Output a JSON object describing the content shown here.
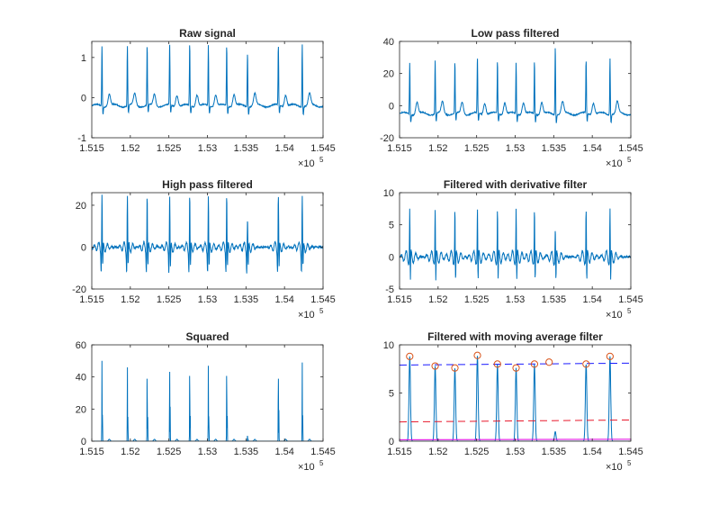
{
  "figure": {
    "background": "#ffffff",
    "line_color": "#0072BD"
  },
  "chart_data": [
    {
      "type": "line",
      "title": "Raw signal",
      "xlim": [
        151500,
        154500
      ],
      "ylim": [
        -1,
        1.4
      ],
      "x_ticks": [
        "1.515",
        "1.52",
        "1.525",
        "1.53",
        "1.535",
        "1.54",
        "1.545"
      ],
      "x_exponent": "×10",
      "x_exponent_power": "5",
      "y_ticks": [
        {
          "v": -1,
          "label": "-1"
        },
        {
          "v": 0,
          "label": "0"
        },
        {
          "v": 1,
          "label": "1"
        }
      ],
      "series": [
        {
          "color": "#0072BD",
          "peak_x": [
            151632,
            151962,
            152218,
            152510,
            152770,
            153012,
            153250,
            153520,
            153920,
            154230
          ],
          "peak_y": [
            1.3,
            1.3,
            1.3,
            1.35,
            1.35,
            1.3,
            1.3,
            1.15,
            1.3,
            1.35
          ],
          "baseline": -0.2
        }
      ]
    },
    {
      "type": "line",
      "title": "Low pass filtered",
      "xlim": [
        151500,
        154500
      ],
      "ylim": [
        -20,
        40
      ],
      "x_ticks": [
        "1.515",
        "1.52",
        "1.525",
        "1.53",
        "1.535",
        "1.54",
        "1.545"
      ],
      "x_exponent": "×10",
      "x_exponent_power": "5",
      "y_ticks": [
        {
          "v": -20,
          "label": "-20"
        },
        {
          "v": 0,
          "label": "0"
        },
        {
          "v": 20,
          "label": "20"
        },
        {
          "v": 40,
          "label": "40"
        }
      ],
      "series": [
        {
          "color": "#0072BD",
          "peak_x": [
            151632,
            151962,
            152218,
            152510,
            152770,
            153012,
            153250,
            153520,
            153920,
            154230
          ],
          "peak_y": [
            27,
            28,
            27,
            30,
            28,
            27,
            28,
            38,
            28,
            30
          ],
          "baseline": -5
        }
      ]
    },
    {
      "type": "line",
      "title": "High pass filtered",
      "xlim": [
        151500,
        154500
      ],
      "ylim": [
        -20,
        26
      ],
      "x_ticks": [
        "1.515",
        "1.52",
        "1.525",
        "1.53",
        "1.535",
        "1.54",
        "1.545"
      ],
      "x_exponent": "×10",
      "x_exponent_power": "5",
      "y_ticks": [
        {
          "v": -20,
          "label": "-20"
        },
        {
          "v": 0,
          "label": "0"
        },
        {
          "v": 20,
          "label": "20"
        }
      ],
      "series": [
        {
          "color": "#0072BD",
          "peak_x": [
            151632,
            151962,
            152218,
            152510,
            152770,
            153012,
            153250,
            153520,
            153920,
            154230
          ],
          "peak_y": [
            25,
            25,
            25,
            25,
            25,
            25,
            25,
            14,
            25,
            25
          ],
          "baseline": 0
        }
      ]
    },
    {
      "type": "line",
      "title": "Filtered with derivative filter",
      "xlim": [
        151500,
        154500
      ],
      "ylim": [
        -5,
        10
      ],
      "x_ticks": [
        "1.515",
        "1.52",
        "1.525",
        "1.53",
        "1.535",
        "1.54",
        "1.545"
      ],
      "x_exponent": "×10",
      "x_exponent_power": "5",
      "y_ticks": [
        {
          "v": -5,
          "label": "-5"
        },
        {
          "v": 0,
          "label": "0"
        },
        {
          "v": 5,
          "label": "5"
        },
        {
          "v": 10,
          "label": "10"
        }
      ],
      "series": [
        {
          "color": "#0072BD",
          "peak_x": [
            151632,
            151962,
            152218,
            152510,
            152770,
            153012,
            153250,
            153520,
            153920,
            154230
          ],
          "peak_y": [
            7.5,
            7.5,
            7.5,
            7.7,
            7.5,
            7.5,
            7.5,
            4.5,
            7.5,
            7.6
          ],
          "baseline": 0
        }
      ]
    },
    {
      "type": "line",
      "title": "Squared",
      "xlim": [
        151500,
        154500
      ],
      "ylim": [
        0,
        60
      ],
      "x_ticks": [
        "1.515",
        "1.52",
        "1.525",
        "1.53",
        "1.535",
        "1.54",
        "1.545"
      ],
      "x_exponent": "×10",
      "x_exponent_power": "5",
      "y_ticks": [
        {
          "v": 0,
          "label": "0"
        },
        {
          "v": 20,
          "label": "20"
        },
        {
          "v": 40,
          "label": "40"
        },
        {
          "v": 60,
          "label": "60"
        }
      ],
      "series": [
        {
          "color": "#0072BD",
          "peak_x": [
            151632,
            151962,
            152218,
            152510,
            152770,
            153012,
            153250,
            153520,
            153920,
            154230
          ],
          "peak_y": [
            50,
            46,
            46,
            51,
            48,
            47,
            48,
            4,
            46,
            49
          ],
          "baseline": 0
        }
      ]
    },
    {
      "type": "line",
      "title": "Filtered with moving average filter",
      "xlim": [
        151500,
        154500
      ],
      "ylim": [
        0,
        10
      ],
      "x_ticks": [
        "1.515",
        "1.52",
        "1.525",
        "1.53",
        "1.535",
        "1.54",
        "1.545"
      ],
      "x_exponent": "×10",
      "x_exponent_power": "5",
      "y_ticks": [
        {
          "v": 0,
          "label": "0"
        },
        {
          "v": 5,
          "label": "5"
        },
        {
          "v": 10,
          "label": "10"
        }
      ],
      "series": [
        {
          "color": "#0072BD",
          "peak_x": [
            151632,
            151962,
            152218,
            152510,
            152770,
            153012,
            153250,
            153520,
            153920,
            154230
          ],
          "peak_y": [
            8.8,
            7.8,
            7.6,
            8.9,
            8.0,
            7.6,
            8.0,
            1.0,
            8.0,
            8.8
          ],
          "baseline": 0
        },
        {
          "color": "#1a1aff",
          "style": "dashed",
          "x": [
            151500,
            154500
          ],
          "y": [
            7.9,
            8.1
          ]
        },
        {
          "color": "#e8182b",
          "style": "dashed",
          "x": [
            151500,
            154500
          ],
          "y": [
            2.0,
            2.2
          ]
        },
        {
          "color": "#e000e0",
          "x": [
            151500,
            154500
          ],
          "y": [
            0.15,
            0.2
          ]
        }
      ],
      "markers": {
        "color": "#D95319",
        "x": [
          151632,
          151962,
          152218,
          152510,
          152770,
          153012,
          153250,
          153440,
          153920,
          154230
        ],
        "y": [
          8.8,
          7.8,
          7.6,
          8.9,
          8.0,
          7.6,
          8.0,
          8.2,
          8.0,
          8.8
        ]
      }
    }
  ]
}
